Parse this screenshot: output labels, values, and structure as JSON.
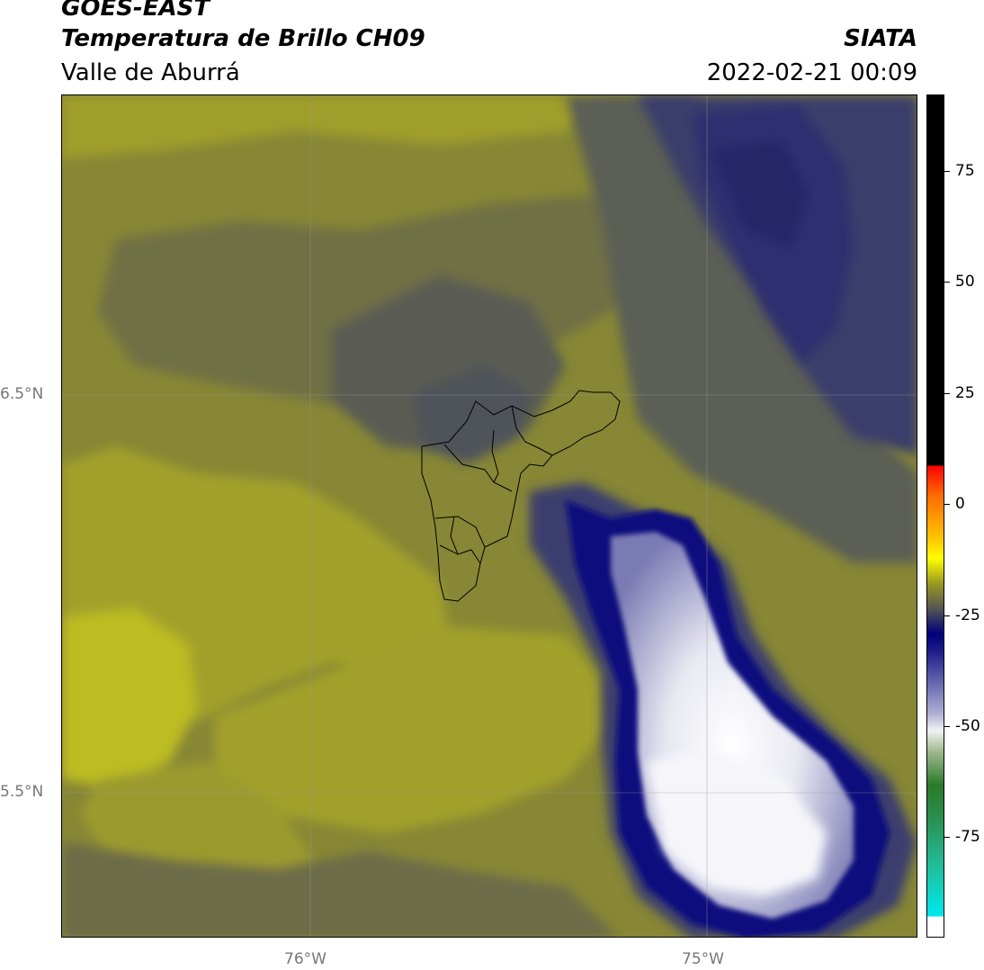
{
  "header": {
    "title_line1": "GOES-EAST",
    "title_line2": "Temperatura de Brillo CH09",
    "title_line3": "Valle de Aburrá",
    "org": "SIATA",
    "datetime": "2022-02-21 00:09"
  },
  "map": {
    "lat_ticks": [
      "6.5°N",
      "5.5°N"
    ],
    "lon_ticks": [
      "76°W",
      "75°W"
    ],
    "colors": {
      "olive_light": "#a4a22a",
      "olive": "#878735",
      "olive_dark": "#6f6f45",
      "gray_dark": "#555858",
      "navy": "#2a2a6a",
      "blue_deep": "#0a0a7a",
      "white_core": "#f4f4f8"
    }
  },
  "colorbar": {
    "ticks": [
      "75",
      "50",
      "25",
      "0",
      "-25",
      "-50",
      "-75"
    ],
    "range": [
      -95,
      92
    ]
  }
}
